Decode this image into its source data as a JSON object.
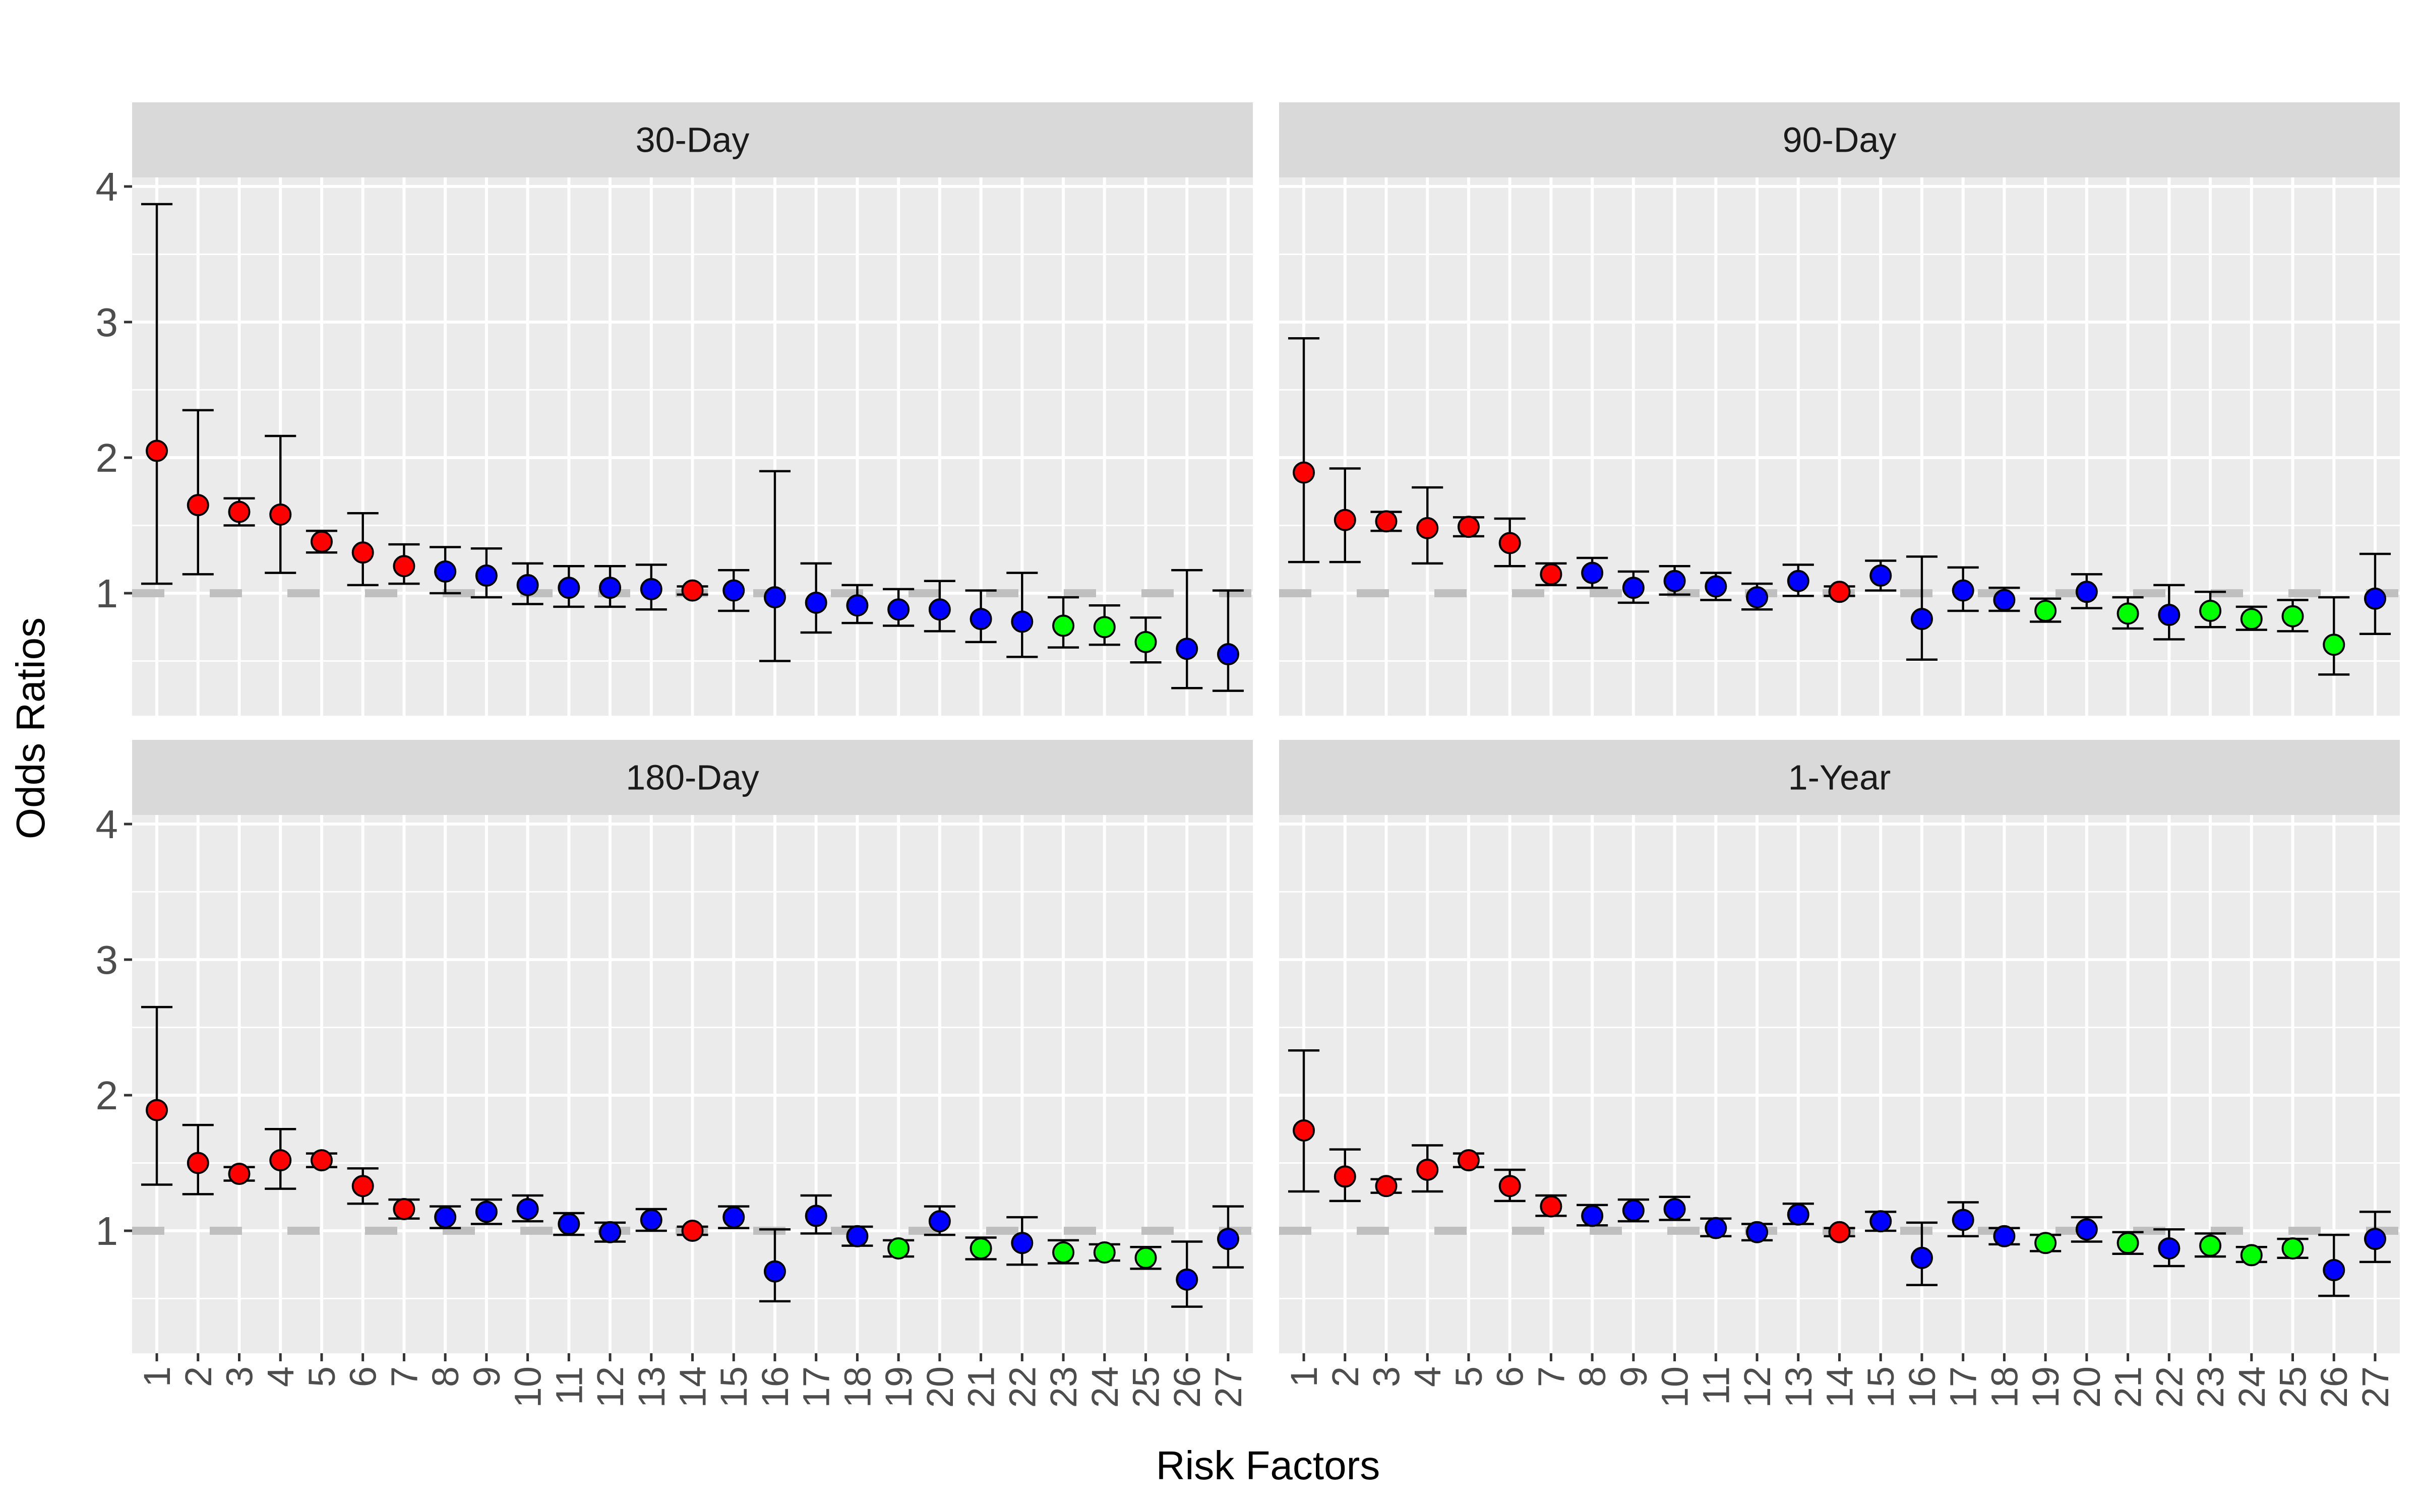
{
  "chart_data": {
    "type": "scatter",
    "subtype": "faceted point-range (odds ratios with 95% CI error bars)",
    "xlabel": "Risk Factors",
    "ylabel": "Odds Ratios",
    "categories": [
      "1",
      "2",
      "3",
      "4",
      "5",
      "6",
      "7",
      "8",
      "9",
      "10",
      "11",
      "12",
      "13",
      "14",
      "15",
      "16",
      "17",
      "18",
      "19",
      "20",
      "21",
      "22",
      "23",
      "24",
      "25",
      "26",
      "27"
    ],
    "yticks": [
      1,
      2,
      3,
      4
    ],
    "ylim": [
      0.1,
      4.2
    ],
    "reference_line": 1,
    "grid": true,
    "legend": "none",
    "colors": {
      "red": "#ff0000",
      "blue": "#0000ff",
      "green": "#00ff00",
      "panel_bg": "#ebebeb",
      "strip_bg": "#d9d9d9",
      "grid": "#ffffff",
      "reference": "#bfbfbf",
      "axis_text": "#4d4d4d"
    },
    "point_colors": [
      "red",
      "red",
      "red",
      "red",
      "red",
      "red",
      "red",
      "blue",
      "blue",
      "blue",
      "blue",
      "blue",
      "blue",
      "red",
      "blue",
      "blue",
      "blue",
      "blue",
      "blue",
      "blue",
      "blue",
      "blue",
      "green",
      "green",
      "green",
      "blue",
      "blue"
    ],
    "panels": [
      {
        "title": "30-Day",
        "color_override": {},
        "or": [
          2.05,
          1.65,
          1.6,
          1.58,
          1.38,
          1.3,
          1.2,
          1.16,
          1.13,
          1.06,
          1.04,
          1.04,
          1.03,
          1.02,
          1.02,
          0.97,
          0.93,
          0.91,
          0.88,
          0.88,
          0.81,
          0.79,
          0.76,
          0.75,
          0.64,
          0.59,
          0.55
        ],
        "lower": [
          1.07,
          1.14,
          1.5,
          1.15,
          1.3,
          1.06,
          1.07,
          1.0,
          0.97,
          0.92,
          0.9,
          0.9,
          0.88,
          0.99,
          0.87,
          0.5,
          0.71,
          0.78,
          0.76,
          0.72,
          0.64,
          0.53,
          0.6,
          0.62,
          0.49,
          0.3,
          0.28
        ],
        "upper": [
          3.87,
          2.35,
          1.7,
          2.16,
          1.46,
          1.59,
          1.36,
          1.34,
          1.33,
          1.22,
          1.2,
          1.2,
          1.21,
          1.05,
          1.17,
          1.9,
          1.22,
          1.06,
          1.03,
          1.09,
          1.02,
          1.15,
          0.97,
          0.91,
          0.82,
          1.17,
          1.02
        ]
      },
      {
        "title": "90-Day",
        "color_override": {
          "19": "green",
          "21": "green",
          "24": "green",
          "25": "green",
          "26": "green"
        },
        "or": [
          1.89,
          1.54,
          1.53,
          1.48,
          1.49,
          1.37,
          1.14,
          1.15,
          1.04,
          1.09,
          1.05,
          0.97,
          1.09,
          1.01,
          1.13,
          0.81,
          1.02,
          0.95,
          0.87,
          1.01,
          0.85,
          0.84,
          0.87,
          0.81,
          0.83,
          0.62,
          0.96
        ],
        "lower": [
          1.23,
          1.23,
          1.46,
          1.22,
          1.42,
          1.2,
          1.06,
          1.04,
          0.93,
          0.99,
          0.95,
          0.88,
          0.98,
          0.98,
          1.02,
          0.51,
          0.87,
          0.87,
          0.79,
          0.89,
          0.74,
          0.66,
          0.75,
          0.73,
          0.72,
          0.4,
          0.7
        ],
        "upper": [
          2.88,
          1.92,
          1.6,
          1.78,
          1.56,
          1.55,
          1.22,
          1.26,
          1.16,
          1.2,
          1.15,
          1.07,
          1.21,
          1.05,
          1.24,
          1.27,
          1.19,
          1.04,
          0.96,
          1.14,
          0.97,
          1.06,
          1.01,
          0.9,
          0.95,
          0.97,
          1.29
        ]
      },
      {
        "title": "180-Day",
        "color_override": {
          "19": "green",
          "21": "green"
        },
        "or": [
          1.89,
          1.5,
          1.42,
          1.52,
          1.52,
          1.33,
          1.16,
          1.1,
          1.14,
          1.16,
          1.05,
          0.99,
          1.08,
          1.0,
          1.1,
          0.7,
          1.11,
          0.96,
          0.87,
          1.07,
          0.87,
          0.91,
          0.84,
          0.84,
          0.8,
          0.64,
          0.94
        ],
        "lower": [
          1.34,
          1.27,
          1.37,
          1.31,
          1.47,
          1.2,
          1.09,
          1.02,
          1.05,
          1.07,
          0.97,
          0.92,
          1.0,
          0.97,
          1.02,
          0.48,
          0.98,
          0.89,
          0.81,
          0.97,
          0.79,
          0.75,
          0.76,
          0.78,
          0.72,
          0.44,
          0.73
        ],
        "upper": [
          2.65,
          1.78,
          1.47,
          1.75,
          1.57,
          1.46,
          1.23,
          1.18,
          1.23,
          1.26,
          1.13,
          1.06,
          1.16,
          1.03,
          1.18,
          1.01,
          1.26,
          1.03,
          0.93,
          1.18,
          0.95,
          1.1,
          0.93,
          0.9,
          0.88,
          0.92,
          1.18
        ]
      },
      {
        "title": "1-Year",
        "color_override": {
          "19": "green",
          "21": "green"
        },
        "or": [
          1.74,
          1.4,
          1.33,
          1.45,
          1.52,
          1.33,
          1.18,
          1.11,
          1.15,
          1.16,
          1.02,
          0.99,
          1.12,
          0.99,
          1.07,
          0.8,
          1.08,
          0.96,
          0.91,
          1.01,
          0.91,
          0.87,
          0.89,
          0.82,
          0.87,
          0.71,
          0.94
        ],
        "lower": [
          1.29,
          1.22,
          1.28,
          1.29,
          1.47,
          1.22,
          1.11,
          1.04,
          1.07,
          1.08,
          0.96,
          0.93,
          1.05,
          0.96,
          1.0,
          0.6,
          0.96,
          0.9,
          0.85,
          0.92,
          0.83,
          0.74,
          0.81,
          0.77,
          0.8,
          0.52,
          0.77
        ],
        "upper": [
          2.33,
          1.6,
          1.38,
          1.63,
          1.57,
          1.45,
          1.26,
          1.19,
          1.23,
          1.25,
          1.09,
          1.05,
          1.2,
          1.02,
          1.14,
          1.06,
          1.21,
          1.02,
          0.97,
          1.1,
          0.99,
          1.01,
          0.98,
          0.88,
          0.94,
          0.97,
          1.14
        ]
      }
    ]
  }
}
